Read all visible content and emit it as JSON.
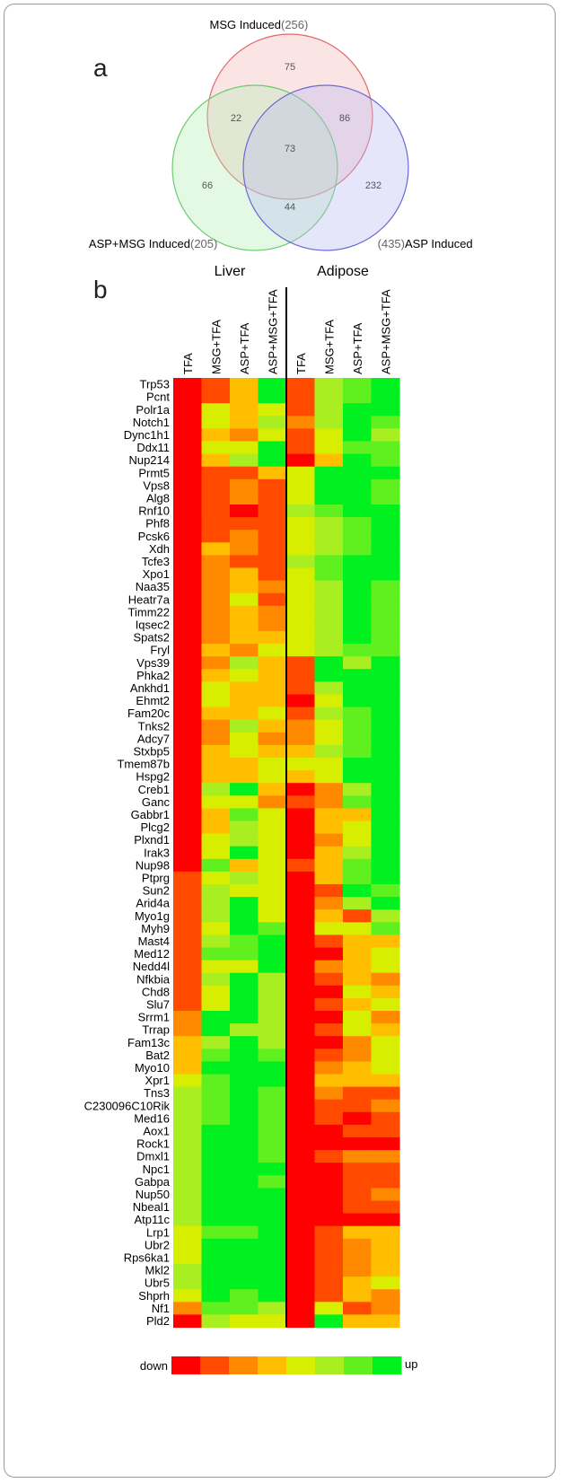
{
  "panel_a_label": "a",
  "panel_b_label": "b",
  "chart_data": [
    {
      "type": "venn",
      "sets": [
        {
          "name": "MSG Induced",
          "count": "(256)",
          "color": "#e8787a"
        },
        {
          "name": "ASP+MSG Induced",
          "count": "(205)",
          "color": "#7bd07b"
        },
        {
          "name": "ASP Induced",
          "count": "(435)",
          "color": "#7b7bd8"
        }
      ],
      "labels": {
        "msg": "MSG Induced",
        "msg_count": "(256)",
        "aspmsg": "ASP+MSG Induced",
        "aspmsg_count": "(205)",
        "asp": "ASP Induced",
        "asp_count": "(435)"
      },
      "regions": {
        "msg_only": "75",
        "aspmsg_only": "66",
        "asp_only": "232",
        "msg_aspmsg": "22",
        "msg_asp": "86",
        "aspmsg_asp": "44",
        "all": "73"
      }
    },
    {
      "type": "heatmap",
      "groups": [
        "Liver",
        "Adipose"
      ],
      "columns": [
        "TFA",
        "MSG+TFA",
        "ASP+TFA",
        "ASP+MSG+TFA",
        "TFA",
        "MSG+TFA",
        "ASP+TFA",
        "ASP+MSG+TFA"
      ],
      "scale": {
        "low_label": "down",
        "high_label": "up",
        "levels": [
          "#ff0000",
          "#ff4a00",
          "#ff8a00",
          "#ffbf00",
          "#d8ee00",
          "#a8ee20",
          "#60f020",
          "#00f020"
        ]
      },
      "value_range": [
        0,
        7
      ],
      "rows": [
        {
          "gene": "Trp53",
          "values": [
            0,
            1,
            3,
            7,
            1,
            5,
            6,
            7
          ]
        },
        {
          "gene": "Pcnt",
          "values": [
            0,
            1,
            3,
            7,
            1,
            5,
            6,
            7
          ]
        },
        {
          "gene": "Polr1a",
          "values": [
            0,
            4,
            3,
            4,
            1,
            5,
            7,
            7
          ]
        },
        {
          "gene": "Notch1",
          "values": [
            0,
            4,
            3,
            5,
            2,
            5,
            7,
            6
          ]
        },
        {
          "gene": "Dync1h1",
          "values": [
            0,
            3,
            2,
            4,
            1,
            4,
            7,
            5
          ]
        },
        {
          "gene": "Ddx11",
          "values": [
            0,
            4,
            4,
            7,
            1,
            4,
            6,
            6
          ]
        },
        {
          "gene": "Nup214",
          "values": [
            0,
            3,
            5,
            7,
            0,
            3,
            7,
            6
          ]
        },
        {
          "gene": "Prmt5",
          "values": [
            0,
            1,
            1,
            3,
            4,
            7,
            7,
            7
          ]
        },
        {
          "gene": "Vps8",
          "values": [
            0,
            1,
            2,
            1,
            4,
            7,
            7,
            6
          ]
        },
        {
          "gene": "Alg8",
          "values": [
            0,
            1,
            2,
            1,
            4,
            7,
            7,
            6
          ]
        },
        {
          "gene": "Rnf10",
          "values": [
            0,
            1,
            0,
            1,
            5,
            6,
            7,
            7
          ]
        },
        {
          "gene": "Phf8",
          "values": [
            0,
            1,
            1,
            1,
            4,
            5,
            6,
            7
          ]
        },
        {
          "gene": "Pcsk6",
          "values": [
            0,
            1,
            2,
            1,
            4,
            5,
            6,
            7
          ]
        },
        {
          "gene": "Xdh",
          "values": [
            0,
            3,
            2,
            1,
            4,
            5,
            6,
            7
          ]
        },
        {
          "gene": "Tcfe3",
          "values": [
            0,
            2,
            1,
            1,
            5,
            6,
            7,
            7
          ]
        },
        {
          "gene": "Xpo1",
          "values": [
            0,
            2,
            3,
            1,
            4,
            6,
            7,
            7
          ]
        },
        {
          "gene": "Naa35",
          "values": [
            0,
            2,
            3,
            2,
            4,
            5,
            7,
            6
          ]
        },
        {
          "gene": "Heatr7a",
          "values": [
            0,
            2,
            4,
            1,
            4,
            5,
            7,
            6
          ]
        },
        {
          "gene": "Timm22",
          "values": [
            0,
            2,
            3,
            2,
            4,
            5,
            7,
            6
          ]
        },
        {
          "gene": "Iqsec2",
          "values": [
            0,
            2,
            3,
            2,
            4,
            5,
            7,
            6
          ]
        },
        {
          "gene": "Spats2",
          "values": [
            0,
            2,
            3,
            3,
            4,
            5,
            7,
            6
          ]
        },
        {
          "gene": "Fryl",
          "values": [
            0,
            3,
            2,
            4,
            4,
            5,
            6,
            6
          ]
        },
        {
          "gene": "Vps39",
          "values": [
            0,
            2,
            5,
            3,
            1,
            7,
            5,
            7
          ]
        },
        {
          "gene": "Phka2",
          "values": [
            0,
            3,
            4,
            3,
            1,
            7,
            7,
            7
          ]
        },
        {
          "gene": "Ankhd1",
          "values": [
            0,
            4,
            3,
            3,
            1,
            5,
            7,
            7
          ]
        },
        {
          "gene": "Ehmt2",
          "values": [
            0,
            4,
            3,
            3,
            0,
            4,
            7,
            7
          ]
        },
        {
          "gene": "Fam20c",
          "values": [
            0,
            3,
            3,
            4,
            1,
            5,
            6,
            7
          ]
        },
        {
          "gene": "Tnks2",
          "values": [
            0,
            2,
            5,
            3,
            2,
            4,
            6,
            7
          ]
        },
        {
          "gene": "Adcy7",
          "values": [
            0,
            2,
            4,
            2,
            2,
            4,
            6,
            7
          ]
        },
        {
          "gene": "Stxbp5",
          "values": [
            0,
            3,
            4,
            3,
            3,
            5,
            6,
            7
          ]
        },
        {
          "gene": "Tmem87b",
          "values": [
            0,
            3,
            3,
            4,
            4,
            4,
            7,
            7
          ]
        },
        {
          "gene": "Hspg2",
          "values": [
            0,
            3,
            3,
            4,
            3,
            4,
            7,
            7
          ]
        },
        {
          "gene": "Creb1",
          "values": [
            0,
            5,
            7,
            3,
            0,
            2,
            5,
            7
          ]
        },
        {
          "gene": "Ganc",
          "values": [
            0,
            4,
            4,
            2,
            1,
            2,
            6,
            7
          ]
        },
        {
          "gene": "Gabbr1",
          "values": [
            0,
            3,
            6,
            4,
            0,
            3,
            3,
            7
          ]
        },
        {
          "gene": "Plcg2",
          "values": [
            0,
            3,
            5,
            4,
            0,
            3,
            4,
            7
          ]
        },
        {
          "gene": "Plxnd1",
          "values": [
            0,
            4,
            5,
            4,
            0,
            2,
            4,
            7
          ]
        },
        {
          "gene": "Irak3",
          "values": [
            0,
            4,
            7,
            4,
            0,
            3,
            5,
            7
          ]
        },
        {
          "gene": "Nup98",
          "values": [
            0,
            6,
            3,
            4,
            1,
            3,
            6,
            7
          ]
        },
        {
          "gene": "Ptprg",
          "values": [
            1,
            4,
            5,
            4,
            0,
            3,
            6,
            7
          ]
        },
        {
          "gene": "Sun2",
          "values": [
            1,
            5,
            4,
            4,
            0,
            1,
            7,
            6
          ]
        },
        {
          "gene": "Arid4a",
          "values": [
            1,
            5,
            7,
            4,
            0,
            2,
            5,
            7
          ]
        },
        {
          "gene": "Myo1g",
          "values": [
            1,
            5,
            7,
            4,
            0,
            3,
            1,
            5
          ]
        },
        {
          "gene": "Myh9",
          "values": [
            1,
            4,
            7,
            6,
            0,
            4,
            4,
            6
          ]
        },
        {
          "gene": "Mast4",
          "values": [
            1,
            5,
            6,
            7,
            0,
            1,
            3,
            3
          ]
        },
        {
          "gene": "Med12",
          "values": [
            1,
            6,
            6,
            7,
            0,
            0,
            3,
            4
          ]
        },
        {
          "gene": "Nedd4l",
          "values": [
            1,
            4,
            4,
            7,
            0,
            2,
            3,
            4
          ]
        },
        {
          "gene": "Nfkbia",
          "values": [
            1,
            5,
            7,
            5,
            0,
            1,
            3,
            2
          ]
        },
        {
          "gene": "Chd8",
          "values": [
            1,
            4,
            7,
            5,
            0,
            0,
            4,
            3
          ]
        },
        {
          "gene": "Slu7",
          "values": [
            1,
            4,
            7,
            5,
            0,
            1,
            3,
            4
          ]
        },
        {
          "gene": "Srrm1",
          "values": [
            2,
            7,
            7,
            5,
            0,
            0,
            4,
            2
          ]
        },
        {
          "gene": "Trrap",
          "values": [
            2,
            7,
            5,
            5,
            0,
            1,
            4,
            3
          ]
        },
        {
          "gene": "Fam13c",
          "values": [
            3,
            5,
            7,
            5,
            0,
            0,
            2,
            4
          ]
        },
        {
          "gene": "Bat2",
          "values": [
            3,
            6,
            7,
            6,
            0,
            1,
            2,
            4
          ]
        },
        {
          "gene": "Myo10",
          "values": [
            3,
            7,
            7,
            7,
            0,
            2,
            3,
            4
          ]
        },
        {
          "gene": "Xpr1",
          "values": [
            4,
            6,
            7,
            7,
            0,
            3,
            3,
            3
          ]
        },
        {
          "gene": "Tns3",
          "values": [
            5,
            6,
            7,
            6,
            0,
            2,
            1,
            1
          ]
        },
        {
          "gene": "C230096C10Rik",
          "values": [
            5,
            6,
            7,
            6,
            0,
            1,
            1,
            2
          ]
        },
        {
          "gene": "Med16",
          "values": [
            5,
            6,
            7,
            6,
            0,
            1,
            0,
            1
          ]
        },
        {
          "gene": "Aox1",
          "values": [
            5,
            7,
            7,
            6,
            0,
            0,
            1,
            1
          ]
        },
        {
          "gene": "Rock1",
          "values": [
            5,
            7,
            7,
            6,
            0,
            0,
            0,
            0
          ]
        },
        {
          "gene": "Dmxl1",
          "values": [
            5,
            7,
            7,
            6,
            0,
            1,
            2,
            2
          ]
        },
        {
          "gene": "Npc1",
          "values": [
            5,
            7,
            7,
            7,
            0,
            0,
            1,
            1
          ]
        },
        {
          "gene": "Gabpa",
          "values": [
            5,
            7,
            7,
            6,
            0,
            0,
            1,
            1
          ]
        },
        {
          "gene": "Nup50",
          "values": [
            5,
            7,
            7,
            7,
            0,
            0,
            1,
            2
          ]
        },
        {
          "gene": "Nbeal1",
          "values": [
            5,
            7,
            7,
            7,
            0,
            0,
            1,
            1
          ]
        },
        {
          "gene": "Atp11c",
          "values": [
            5,
            7,
            7,
            7,
            0,
            0,
            0,
            0
          ]
        },
        {
          "gene": "Lrp1",
          "values": [
            4,
            6,
            6,
            7,
            0,
            1,
            3,
            3
          ]
        },
        {
          "gene": "Ubr2",
          "values": [
            4,
            7,
            7,
            7,
            0,
            1,
            2,
            3
          ]
        },
        {
          "gene": "Rps6ka1",
          "values": [
            4,
            7,
            7,
            7,
            0,
            1,
            2,
            3
          ]
        },
        {
          "gene": "Mkl2",
          "values": [
            5,
            7,
            7,
            7,
            0,
            1,
            2,
            3
          ]
        },
        {
          "gene": "Ubr5",
          "values": [
            5,
            7,
            7,
            7,
            0,
            1,
            3,
            4
          ]
        },
        {
          "gene": "Shprh",
          "values": [
            4,
            7,
            6,
            7,
            0,
            1,
            3,
            2
          ]
        },
        {
          "gene": "Nf1",
          "values": [
            2,
            6,
            6,
            5,
            0,
            4,
            1,
            2
          ]
        },
        {
          "gene": "Pld2",
          "values": [
            0,
            5,
            4,
            4,
            0,
            7,
            3,
            3
          ]
        }
      ]
    }
  ]
}
